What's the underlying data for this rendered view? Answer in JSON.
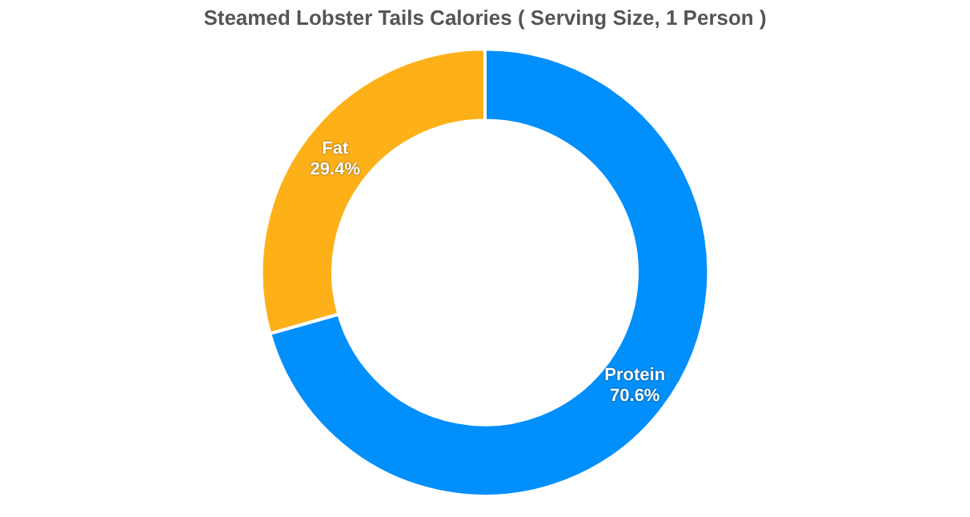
{
  "chart_data": {
    "type": "donut",
    "title": "Steamed Lobster Tails Calories ( Serving Size, 1 Person )",
    "categories": [
      "Protein",
      "Fat"
    ],
    "values": [
      70.6,
      29.4
    ],
    "colors": [
      "#008ffb",
      "#feb019"
    ],
    "value_labels": [
      "70.6%",
      "29.4%"
    ],
    "legend": false
  }
}
